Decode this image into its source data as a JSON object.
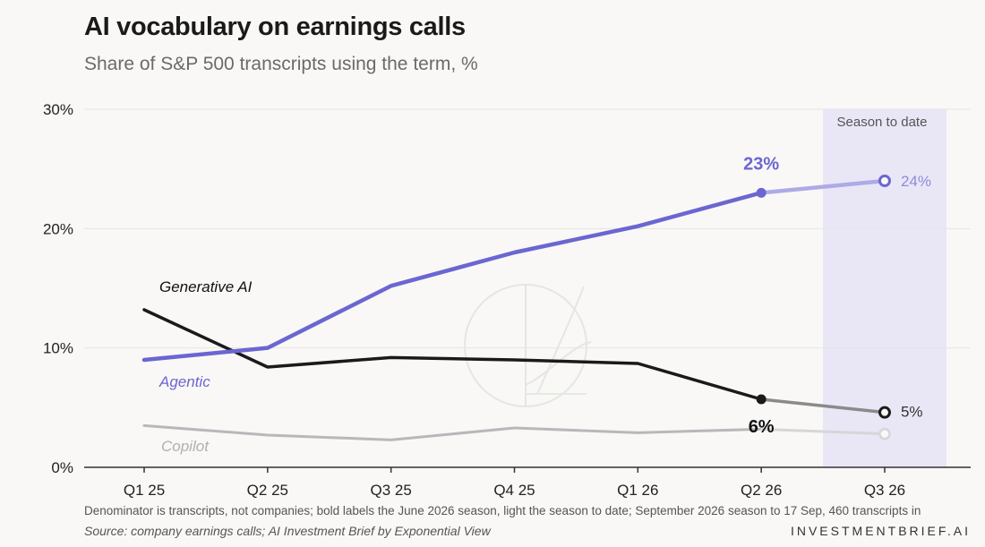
{
  "header": {
    "title": "AI vocabulary on earnings calls",
    "subtitle": "Share of S&P 500 transcripts using the term, %"
  },
  "footer": {
    "note": "Denominator is transcripts, not companies; bold labels the June 2026 season, light the season to date; September 2026 season to 17 Sep, 460 transcripts in",
    "source": "Source: company earnings calls; AI Investment Brief by Exponential View",
    "brand": "INVESTMENTBRIEF.AI"
  },
  "colors": {
    "agentic": "#6b66d1",
    "agentic_light": "#aeaae6",
    "generative": "#1a1a1a",
    "generative_light": "#8a8a8a",
    "copilot": "#b9b7bb",
    "copilot_light": "#d6d5d8",
    "highlight_band": "#e9e7f6",
    "grid": "#e6e5e2"
  },
  "chart_data": {
    "type": "line",
    "title": "AI vocabulary on earnings calls",
    "subtitle": "Share of S&P 500 transcripts using the term, %",
    "categories": [
      "Q1 25",
      "Q2 25",
      "Q3 25",
      "Q4 25",
      "Q1 26",
      "Q2 26",
      "Q3 26"
    ],
    "ylim": [
      0,
      30
    ],
    "yticks": [
      "0%",
      "10%",
      "20%",
      "30%"
    ],
    "grid": true,
    "highlight": {
      "label": "Season to date",
      "category": "Q3 26"
    },
    "series": [
      {
        "name": "Agentic",
        "values": [
          9,
          10,
          15.2,
          18,
          20.2,
          23,
          24
        ],
        "last_label": "23%",
        "partial_label": "24%"
      },
      {
        "name": "Generative AI",
        "values": [
          13.2,
          8.4,
          9.2,
          9,
          8.7,
          5.7,
          4.6
        ],
        "last_label": "6%",
        "partial_label": "5%"
      },
      {
        "name": "Copilot",
        "values": [
          3.5,
          2.7,
          2.3,
          3.3,
          2.9,
          3.2,
          2.8
        ]
      }
    ]
  }
}
